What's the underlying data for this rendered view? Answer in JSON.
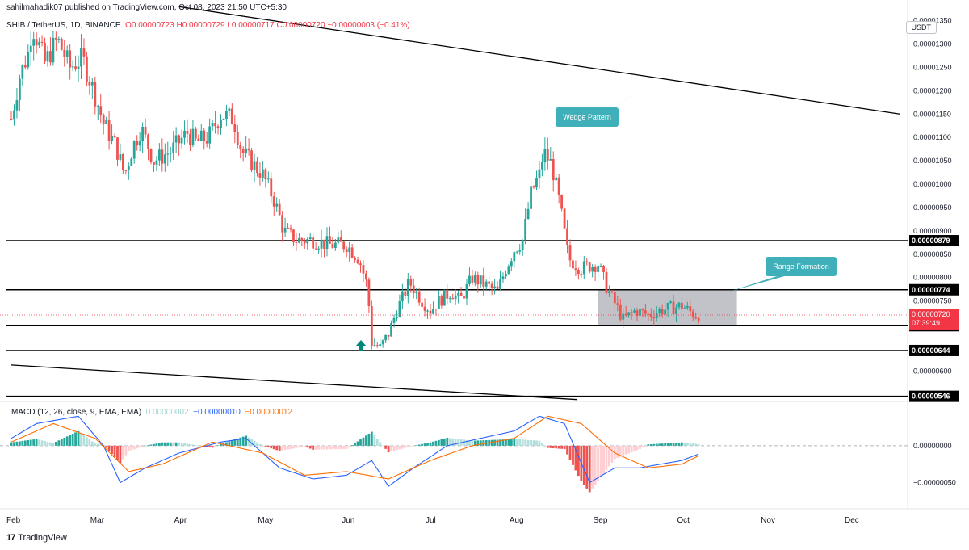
{
  "header": {
    "published": "sahilmahadik07 published on TradingView.com, Oct 08, 2023 21:50 UTC+5:30",
    "symbol": "SHIB / TetherUS, 1D, BINANCE",
    "ohlc": "O0.00000723 H0.00000729 L0.00000717 C0.00000720 −0.00000003 (−0.41%)",
    "currency": "USDT"
  },
  "macd_legend": {
    "name": "MACD (12, 26, close, 9, EMA, EMA)",
    "hist": "0.00000002",
    "macd": "−0.00000010",
    "signal": "−0.00000012"
  },
  "footer": {
    "brand": "TradingView"
  },
  "colors": {
    "up": "#26a69a",
    "down": "#ef5350",
    "macd": "#2962ff",
    "signal": "#ff6d00",
    "hist_up": "#26a69a",
    "hist_up_light": "#b2dfdb",
    "hist_down": "#ef5350",
    "hist_down_light": "#ffcdd2",
    "annotation": "#3fb0ba",
    "range_box": "#9e9e9e",
    "last_price": "#f23645"
  },
  "chart_data": {
    "type": "candlestick",
    "x_ticks": [
      "Feb",
      "Mar",
      "Apr",
      "May",
      "Jun",
      "Jul",
      "Aug",
      "Sep",
      "Oct",
      "Nov",
      "Dec"
    ],
    "y_ticks": [
      "0.00001350",
      "0.00001300",
      "0.00001250",
      "0.00001200",
      "0.00001150",
      "0.00001100",
      "0.00001050",
      "0.00001000",
      "0.00000950",
      "0.00000900",
      "0.00000850",
      "0.00000800",
      "0.00000750",
      "0.00000600"
    ],
    "price_range": [
      5.35e-06,
      1.37e-05
    ],
    "last_price": {
      "value": "0.00000720",
      "countdown": "07:39:49"
    },
    "levels": [
      {
        "value": 8.79e-06,
        "label": "0.00000879"
      },
      {
        "value": 7.74e-06,
        "label": "0.00000774"
      },
      {
        "value": 6.97e-06,
        "label": "0.00000697"
      },
      {
        "value": 6.44e-06,
        "label": "0.00000644"
      },
      {
        "value": 5.46e-06,
        "label": "0.00000546"
      }
    ],
    "annotations": [
      {
        "text": "Wedge Pattern"
      },
      {
        "text": "Range Formation"
      }
    ],
    "range_box": {
      "top": 7.74e-06,
      "bottom": 6.97e-06,
      "from_month": 7.0,
      "to_month": 8.65
    },
    "wedge_upper": [
      [
        2.0,
        1.38e-05
      ],
      [
        10.6,
        1.15e-05
      ]
    ],
    "wedge_lower": [
      [
        0.0,
        6.13e-06
      ],
      [
        6.75,
        5.39e-06
      ]
    ],
    "price_path": [
      [
        0.0,
        1.14e-05
      ],
      [
        0.1,
        1.23e-05
      ],
      [
        0.2,
        1.28e-05
      ],
      [
        0.25,
        1.34e-05
      ],
      [
        0.4,
        1.26e-05
      ],
      [
        0.55,
        1.31e-05
      ],
      [
        0.7,
        1.25e-05
      ],
      [
        0.85,
        1.27e-05
      ],
      [
        1.0,
        1.19e-05
      ],
      [
        1.1,
        1.13e-05
      ],
      [
        1.25,
        1.08e-05
      ],
      [
        1.35,
        1.02e-05
      ],
      [
        1.45,
        1.08e-05
      ],
      [
        1.55,
        1.12e-05
      ],
      [
        1.7,
        1.05e-05
      ],
      [
        1.9,
        1.07e-05
      ],
      [
        2.1,
        1.11e-05
      ],
      [
        2.2,
        1.09e-05
      ],
      [
        2.35,
        1.1e-05
      ],
      [
        2.5,
        1.15e-05
      ],
      [
        2.65,
        1.14e-05
      ],
      [
        2.75,
        1.07e-05
      ],
      [
        2.9,
        1.04e-05
      ],
      [
        3.0,
        1.02e-05
      ],
      [
        3.15,
        9.6e-06
      ],
      [
        3.25,
        9e-06
      ],
      [
        3.4,
        8.8e-06
      ],
      [
        3.6,
        8.8e-06
      ],
      [
        3.8,
        8.7e-06
      ],
      [
        4.0,
        8.7e-06
      ],
      [
        4.15,
        8.4e-06
      ],
      [
        4.25,
        7.8e-06
      ],
      [
        4.3,
        6.6e-06
      ],
      [
        4.4,
        6.5e-06
      ],
      [
        4.5,
        6.8e-06
      ],
      [
        4.6,
        7.3e-06
      ],
      [
        4.75,
        7.9e-06
      ],
      [
        4.9,
        7.5e-06
      ],
      [
        5.0,
        7.3e-06
      ],
      [
        5.1,
        7.5e-06
      ],
      [
        5.25,
        7.7e-06
      ],
      [
        5.35,
        7.5e-06
      ],
      [
        5.5,
        8e-06
      ],
      [
        5.6,
        7.9e-06
      ],
      [
        5.8,
        7.7e-06
      ],
      [
        5.9,
        8.2e-06
      ],
      [
        6.0,
        8.6e-06
      ],
      [
        6.1,
        8.8e-06
      ],
      [
        6.2,
        9.8e-06
      ],
      [
        6.3,
        1.02e-05
      ],
      [
        6.35,
        1.07e-05
      ],
      [
        6.45,
        1.04e-05
      ],
      [
        6.55,
        9.5e-06
      ],
      [
        6.65,
        8.4e-06
      ],
      [
        6.8,
        8.2e-06
      ],
      [
        7.0,
        8.3e-06
      ],
      [
        7.1,
        7.8e-06
      ],
      [
        7.3,
        7.1e-06
      ],
      [
        7.45,
        7.3e-06
      ],
      [
        7.6,
        7.2e-06
      ],
      [
        7.75,
        7.3e-06
      ],
      [
        8.0,
        7.4e-06
      ],
      [
        8.15,
        7.2e-06
      ],
      [
        8.23,
        7.2e-06
      ]
    ],
    "macd_range": [
      -8e-07,
      6e-07
    ],
    "macd_ticks": [
      "0.00000000",
      "−0.00000050"
    ],
    "macd_path": [
      [
        0.0,
        1e-07
      ],
      [
        0.3,
        3e-07
      ],
      [
        0.8,
        4e-07
      ],
      [
        1.1,
        0.0
      ],
      [
        1.3,
        -5e-07
      ],
      [
        1.6,
        -3e-07
      ],
      [
        2.0,
        -1e-07
      ],
      [
        2.5,
        5e-08
      ],
      [
        2.8,
        1e-07
      ],
      [
        3.2,
        -3e-07
      ],
      [
        3.6,
        -4.5e-07
      ],
      [
        4.0,
        -4e-07
      ],
      [
        4.3,
        -2e-07
      ],
      [
        4.5,
        -5.5e-07
      ],
      [
        4.8,
        -3e-07
      ],
      [
        5.2,
        0.0
      ],
      [
        5.6,
        1e-07
      ],
      [
        6.0,
        2e-07
      ],
      [
        6.3,
        4e-07
      ],
      [
        6.6,
        3e-07
      ],
      [
        6.9,
        -5e-07
      ],
      [
        7.2,
        -3e-07
      ],
      [
        7.5,
        -3e-07
      ],
      [
        8.0,
        -2e-07
      ],
      [
        8.23,
        -1e-07
      ]
    ],
    "signal_path": [
      [
        0.0,
        5e-08
      ],
      [
        0.5,
        3e-07
      ],
      [
        1.0,
        1e-07
      ],
      [
        1.4,
        -3.5e-07
      ],
      [
        1.8,
        -2.5e-07
      ],
      [
        2.4,
        5e-08
      ],
      [
        3.0,
        -1e-07
      ],
      [
        3.5,
        -4e-07
      ],
      [
        4.0,
        -3.5e-07
      ],
      [
        4.5,
        -4.5e-07
      ],
      [
        5.0,
        -2e-07
      ],
      [
        5.5,
        0.0
      ],
      [
        6.0,
        1e-07
      ],
      [
        6.4,
        4e-07
      ],
      [
        6.8,
        3e-07
      ],
      [
        7.2,
        -1e-07
      ],
      [
        7.6,
        -3e-07
      ],
      [
        8.0,
        -2.5e-07
      ],
      [
        8.23,
        -1.2e-07
      ]
    ]
  }
}
